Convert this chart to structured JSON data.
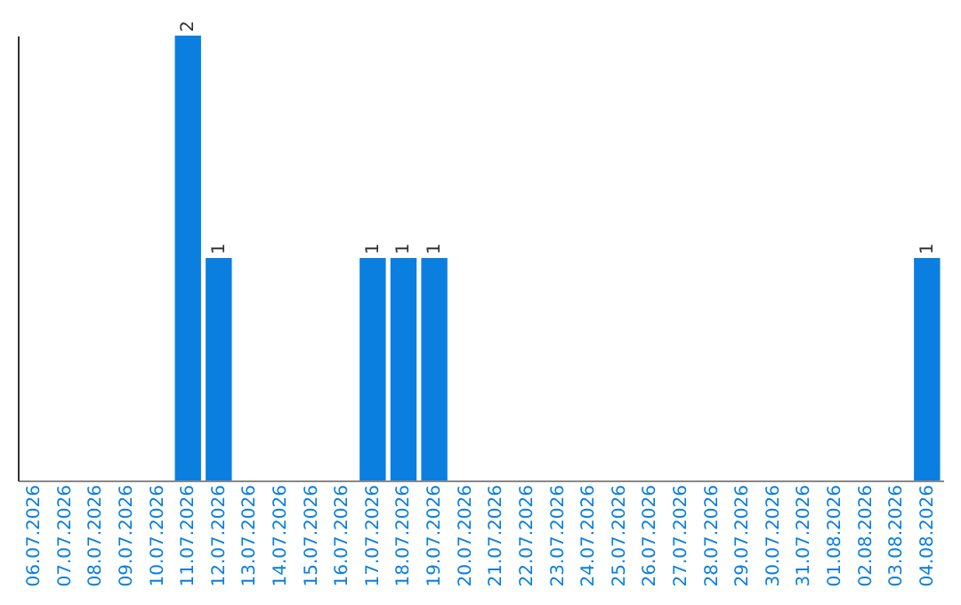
{
  "chart_data": {
    "type": "bar",
    "categories": [
      "06.07.2026",
      "07.07.2026",
      "08.07.2026",
      "09.07.2026",
      "10.07.2026",
      "11.07.2026",
      "12.07.2026",
      "13.07.2026",
      "14.07.2026",
      "15.07.2026",
      "16.07.2026",
      "17.07.2026",
      "18.07.2026",
      "19.07.2026",
      "20.07.2026",
      "21.07.2026",
      "22.07.2026",
      "23.07.2026",
      "24.07.2026",
      "25.07.2026",
      "26.07.2026",
      "27.07.2026",
      "28.07.2026",
      "29.07.2026",
      "30.07.2026",
      "31.07.2026",
      "01.08.2026",
      "02.08.2026",
      "03.08.2026",
      "04.08.2026"
    ],
    "values": [
      0,
      0,
      0,
      0,
      0,
      2,
      1,
      0,
      0,
      0,
      0,
      1,
      1,
      1,
      0,
      0,
      0,
      0,
      0,
      0,
      0,
      0,
      0,
      0,
      0,
      0,
      0,
      0,
      0,
      1
    ],
    "value_labels": [
      null,
      null,
      null,
      null,
      null,
      "2",
      "1",
      null,
      null,
      null,
      null,
      "1",
      "1",
      "1",
      null,
      null,
      null,
      null,
      null,
      null,
      null,
      null,
      null,
      null,
      null,
      null,
      null,
      null,
      null,
      "1"
    ],
    "color": "#0a7fe0",
    "grid": false
  }
}
